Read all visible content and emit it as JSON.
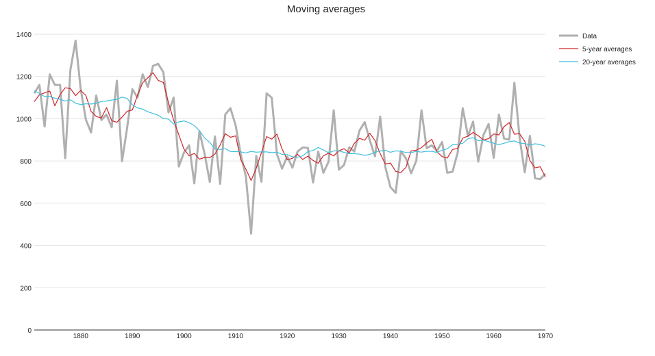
{
  "chart_data": {
    "type": "line",
    "title": "Moving averages",
    "xlim": [
      1871,
      1970
    ],
    "ylim": [
      0,
      1400
    ],
    "x_ticks": [
      "1880",
      "1890",
      "1900",
      "1910",
      "1920",
      "1930",
      "1940",
      "1950",
      "1960",
      "1970"
    ],
    "y_ticks": [
      "0",
      "200",
      "400",
      "600",
      "800",
      "1000",
      "1200",
      "1400"
    ],
    "grid": true,
    "legend_position": "right",
    "x_start": 1871,
    "data": [
      1120,
      1160,
      963,
      1210,
      1160,
      1160,
      813,
      1230,
      1370,
      1140,
      995,
      935,
      1110,
      994,
      1020,
      960,
      1180,
      799,
      958,
      1140,
      1100,
      1210,
      1150,
      1250,
      1260,
      1220,
      1030,
      1100,
      774,
      840,
      874,
      694,
      940,
      833,
      701,
      916,
      692,
      1020,
      1050,
      969,
      831,
      726,
      456,
      824,
      702,
      1120,
      1100,
      832,
      764,
      821,
      768,
      845,
      864,
      862,
      698,
      845,
      744,
      796,
      1040,
      759,
      781,
      865,
      845,
      944,
      984,
      897,
      822,
      1010,
      771,
      676,
      649,
      846,
      812,
      742,
      801,
      1040,
      860,
      874,
      848,
      890,
      744,
      749,
      838,
      1050,
      918,
      986,
      797,
      923,
      975,
      815,
      1020,
      906,
      901,
      1170,
      912,
      746,
      919,
      718,
      714,
      740
    ],
    "series": [
      {
        "name": "Data",
        "color": "#b0b0b0",
        "window": 1
      },
      {
        "name": "5-year averages",
        "color": "#d0262a",
        "window": 5
      },
      {
        "name": "20-year averages",
        "color": "#3fbfdc",
        "window": 20
      }
    ]
  }
}
